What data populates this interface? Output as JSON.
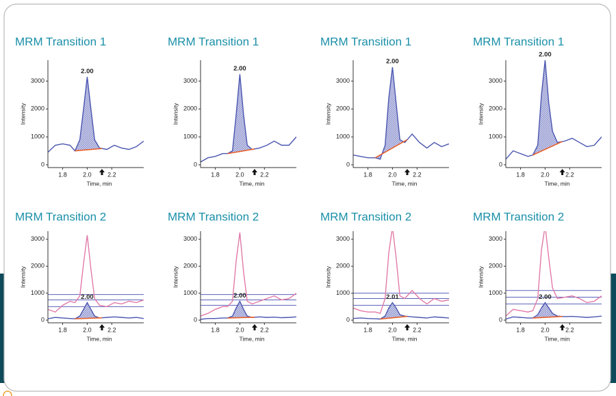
{
  "chart_data": [
    {
      "type": "line",
      "title": "MRM Transition 1",
      "xlabel": "Time, min",
      "ylabel": "Intensity",
      "x": [
        1.68,
        1.74,
        1.8,
        1.86,
        1.9,
        1.94,
        1.97,
        2.0,
        2.03,
        2.06,
        2.1,
        2.16,
        2.22,
        2.28,
        2.34,
        2.4,
        2.46
      ],
      "series": [
        {
          "color": "#4a55b0",
          "values": [
            450,
            700,
            750,
            700,
            500,
            900,
            2000,
            3150,
            2000,
            900,
            600,
            550,
            700,
            600,
            550,
            650,
            850
          ]
        }
      ],
      "peak_window": [
        1.9,
        2.12
      ],
      "peak_label": "2.00",
      "xlim": [
        1.68,
        2.46
      ],
      "ylim": [
        -100,
        3750
      ],
      "xticks": [
        1.8,
        {
          "value": 2,
          "label": "2.0"
        },
        2.2
      ],
      "yticks": [
        0,
        1000,
        2000,
        3000
      ]
    },
    {
      "type": "line",
      "title": "MRM Transition 1",
      "xlabel": "Time, min",
      "ylabel": "Intensity",
      "x": [
        1.68,
        1.74,
        1.8,
        1.86,
        1.9,
        1.94,
        1.97,
        2.0,
        2.03,
        2.06,
        2.1,
        2.16,
        2.22,
        2.28,
        2.34,
        2.4,
        2.46
      ],
      "series": [
        {
          "color": "#4a55b0",
          "values": [
            100,
            250,
            300,
            400,
            400,
            500,
            1800,
            3250,
            1800,
            700,
            550,
            600,
            700,
            850,
            700,
            700,
            1000
          ]
        }
      ],
      "peak_window": [
        1.9,
        2.12
      ],
      "peak_label": "2.00",
      "xlim": [
        1.68,
        2.46
      ],
      "ylim": [
        -100,
        3750
      ],
      "xticks": [
        1.8,
        {
          "value": 2,
          "label": "2.0"
        },
        2.2
      ],
      "yticks": [
        0,
        1000,
        2000,
        3000
      ]
    },
    {
      "type": "line",
      "title": "MRM Transition 1",
      "xlabel": "Time, min",
      "ylabel": "Intensity",
      "x": [
        1.68,
        1.74,
        1.8,
        1.86,
        1.9,
        1.94,
        1.97,
        2.0,
        2.03,
        2.06,
        2.1,
        2.16,
        2.22,
        2.28,
        2.34,
        2.4,
        2.46
      ],
      "series": [
        {
          "color": "#4a55b0",
          "values": [
            350,
            300,
            250,
            250,
            200,
            700,
            2400,
            3500,
            2200,
            900,
            800,
            1100,
            800,
            600,
            800,
            650,
            750
          ]
        }
      ],
      "peak_window": [
        1.86,
        2.12
      ],
      "peak_label": "2.00",
      "xlim": [
        1.68,
        2.46
      ],
      "ylim": [
        -100,
        3750
      ],
      "xticks": [
        1.8,
        {
          "value": 2,
          "label": "2.0"
        },
        2.2
      ],
      "yticks": [
        0,
        1000,
        2000,
        3000
      ]
    },
    {
      "type": "line",
      "title": "MRM Transition 1",
      "xlabel": "Time, min",
      "ylabel": "Intensity",
      "x": [
        1.68,
        1.74,
        1.8,
        1.86,
        1.9,
        1.94,
        1.97,
        2.0,
        2.03,
        2.06,
        2.1,
        2.16,
        2.22,
        2.28,
        2.34,
        2.4,
        2.46
      ],
      "series": [
        {
          "color": "#4a55b0",
          "values": [
            200,
            500,
            400,
            300,
            350,
            700,
            2500,
            3750,
            2200,
            1200,
            800,
            850,
            950,
            800,
            650,
            700,
            1000
          ]
        }
      ],
      "peak_window": [
        1.9,
        2.14
      ],
      "peak_label": "2.00",
      "xlim": [
        1.68,
        2.46
      ],
      "ylim": [
        -100,
        3750
      ],
      "xticks": [
        1.8,
        {
          "value": 2,
          "label": "2.0"
        },
        2.2
      ],
      "yticks": [
        0,
        1000,
        2000,
        3000
      ]
    },
    {
      "type": "line",
      "title": "MRM Transition 2",
      "xlabel": "Time, min",
      "ylabel": "Intensity",
      "x": [
        1.68,
        1.74,
        1.8,
        1.86,
        1.9,
        1.94,
        1.97,
        2.0,
        2.03,
        2.06,
        2.1,
        2.16,
        2.22,
        2.28,
        2.34,
        2.4,
        2.46
      ],
      "series": [
        {
          "color": "#e07aa8",
          "values": [
            400,
            300,
            550,
            700,
            650,
            900,
            2100,
            3150,
            1900,
            800,
            550,
            500,
            650,
            600,
            700,
            650,
            750
          ]
        },
        {
          "color": "#4a55b0",
          "values": [
            50,
            100,
            80,
            60,
            50,
            150,
            400,
            650,
            400,
            150,
            80,
            100,
            120,
            100,
            80,
            100,
            60
          ]
        }
      ],
      "ratio_lines": [
        950,
        750,
        500
      ],
      "peak_window": [
        1.9,
        2.12
      ],
      "peak_label": "2.00",
      "xlim": [
        1.68,
        2.46
      ],
      "ylim": [
        -100,
        3300
      ],
      "xticks": [
        1.8,
        {
          "value": 2,
          "label": "2.0"
        },
        2.2
      ],
      "yticks": [
        0,
        1000,
        2000,
        3000
      ]
    },
    {
      "type": "line",
      "title": "MRM Transition 2",
      "xlabel": "Time, min",
      "ylabel": "Intensity",
      "x": [
        1.68,
        1.74,
        1.8,
        1.86,
        1.9,
        1.94,
        1.97,
        2.0,
        2.03,
        2.06,
        2.1,
        2.16,
        2.22,
        2.28,
        2.34,
        2.4,
        2.46
      ],
      "series": [
        {
          "color": "#e07aa8",
          "values": [
            150,
            250,
            400,
            500,
            500,
            700,
            2200,
            3250,
            1800,
            700,
            600,
            700,
            800,
            900,
            750,
            800,
            1000
          ]
        },
        {
          "color": "#4a55b0",
          "values": [
            30,
            60,
            60,
            80,
            80,
            150,
            450,
            700,
            400,
            150,
            100,
            120,
            100,
            110,
            90,
            100,
            120
          ]
        }
      ],
      "ratio_lines": [
        950,
        750,
        550
      ],
      "peak_window": [
        1.9,
        2.12
      ],
      "peak_label": "2.00",
      "xlim": [
        1.68,
        2.46
      ],
      "ylim": [
        -100,
        3300
      ],
      "xticks": [
        1.8,
        {
          "value": 2,
          "label": "2.0"
        },
        2.2
      ],
      "yticks": [
        0,
        1000,
        2000,
        3000
      ]
    },
    {
      "type": "line",
      "title": "MRM Transition 2",
      "xlabel": "Time, min",
      "ylabel": "Intensity",
      "x": [
        1.68,
        1.74,
        1.8,
        1.86,
        1.9,
        1.94,
        1.97,
        2.0,
        2.03,
        2.06,
        2.1,
        2.16,
        2.22,
        2.28,
        2.34,
        2.4,
        2.46
      ],
      "series": [
        {
          "color": "#e07aa8",
          "values": [
            450,
            350,
            300,
            300,
            250,
            800,
            2500,
            3450,
            2300,
            900,
            800,
            1100,
            800,
            600,
            800,
            700,
            750
          ]
        },
        {
          "color": "#4a55b0",
          "values": [
            60,
            80,
            60,
            50,
            40,
            150,
            450,
            650,
            450,
            200,
            150,
            120,
            100,
            80,
            120,
            100,
            80
          ]
        }
      ],
      "ratio_lines": [
        1000,
        800,
        550
      ],
      "peak_window": [
        1.9,
        2.12
      ],
      "peak_label": "2.01",
      "xlim": [
        1.68,
        2.46
      ],
      "ylim": [
        -100,
        3300
      ],
      "xticks": [
        1.8,
        {
          "value": 2,
          "label": "2.0"
        },
        2.2
      ],
      "yticks": [
        0,
        1000,
        2000,
        3000
      ]
    },
    {
      "type": "line",
      "title": "MRM Transition 2",
      "xlabel": "Time, min",
      "ylabel": "Intensity",
      "x": [
        1.68,
        1.74,
        1.8,
        1.86,
        1.9,
        1.94,
        1.97,
        2.0,
        2.03,
        2.06,
        2.1,
        2.16,
        2.22,
        2.28,
        2.34,
        2.4,
        2.46
      ],
      "series": [
        {
          "color": "#e07aa8",
          "values": [
            150,
            400,
            350,
            300,
            350,
            800,
            2600,
            3500,
            2300,
            1200,
            800,
            850,
            900,
            800,
            650,
            700,
            900
          ]
        },
        {
          "color": "#4a55b0",
          "values": [
            40,
            120,
            100,
            80,
            80,
            200,
            450,
            650,
            450,
            250,
            150,
            130,
            140,
            120,
            100,
            120,
            150
          ]
        }
      ],
      "ratio_lines": [
        1100,
        850,
        600
      ],
      "peak_window": [
        1.9,
        2.14
      ],
      "peak_label": "2.00",
      "xlim": [
        1.68,
        2.46
      ],
      "ylim": [
        -100,
        3300
      ],
      "xticks": [
        1.8,
        {
          "value": 2,
          "label": "2.0"
        },
        2.2
      ],
      "yticks": [
        0,
        1000,
        2000,
        3000
      ]
    }
  ]
}
